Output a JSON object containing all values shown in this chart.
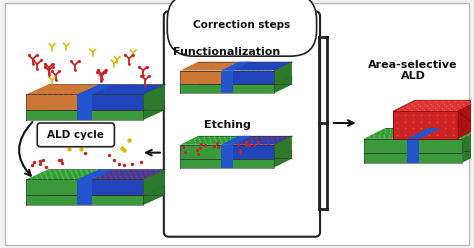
{
  "bg_color": "#f2f2f2",
  "border_color": "#999999",
  "text_color": "#111111",
  "colors": {
    "green_base": "#3a9a3a",
    "green_side": "#2a7a2a",
    "green_dark": "#1e5e1e",
    "blue_stripe": "#2255cc",
    "orange_surf": "#cc7733",
    "blue_surf": "#2244bb",
    "red_dot": "#cc2222",
    "yellow_dot": "#ddbb00",
    "green_dot": "#44cc44",
    "red_film": "#cc2222"
  },
  "labels": {
    "correction_steps": "Correction steps",
    "functionalization": "Functionalization",
    "etching": "Etching",
    "ald_cycle": "ALD cycle",
    "area_selective": "Area-selective\nALD"
  },
  "figsize": [
    4.74,
    2.48
  ],
  "dpi": 100
}
